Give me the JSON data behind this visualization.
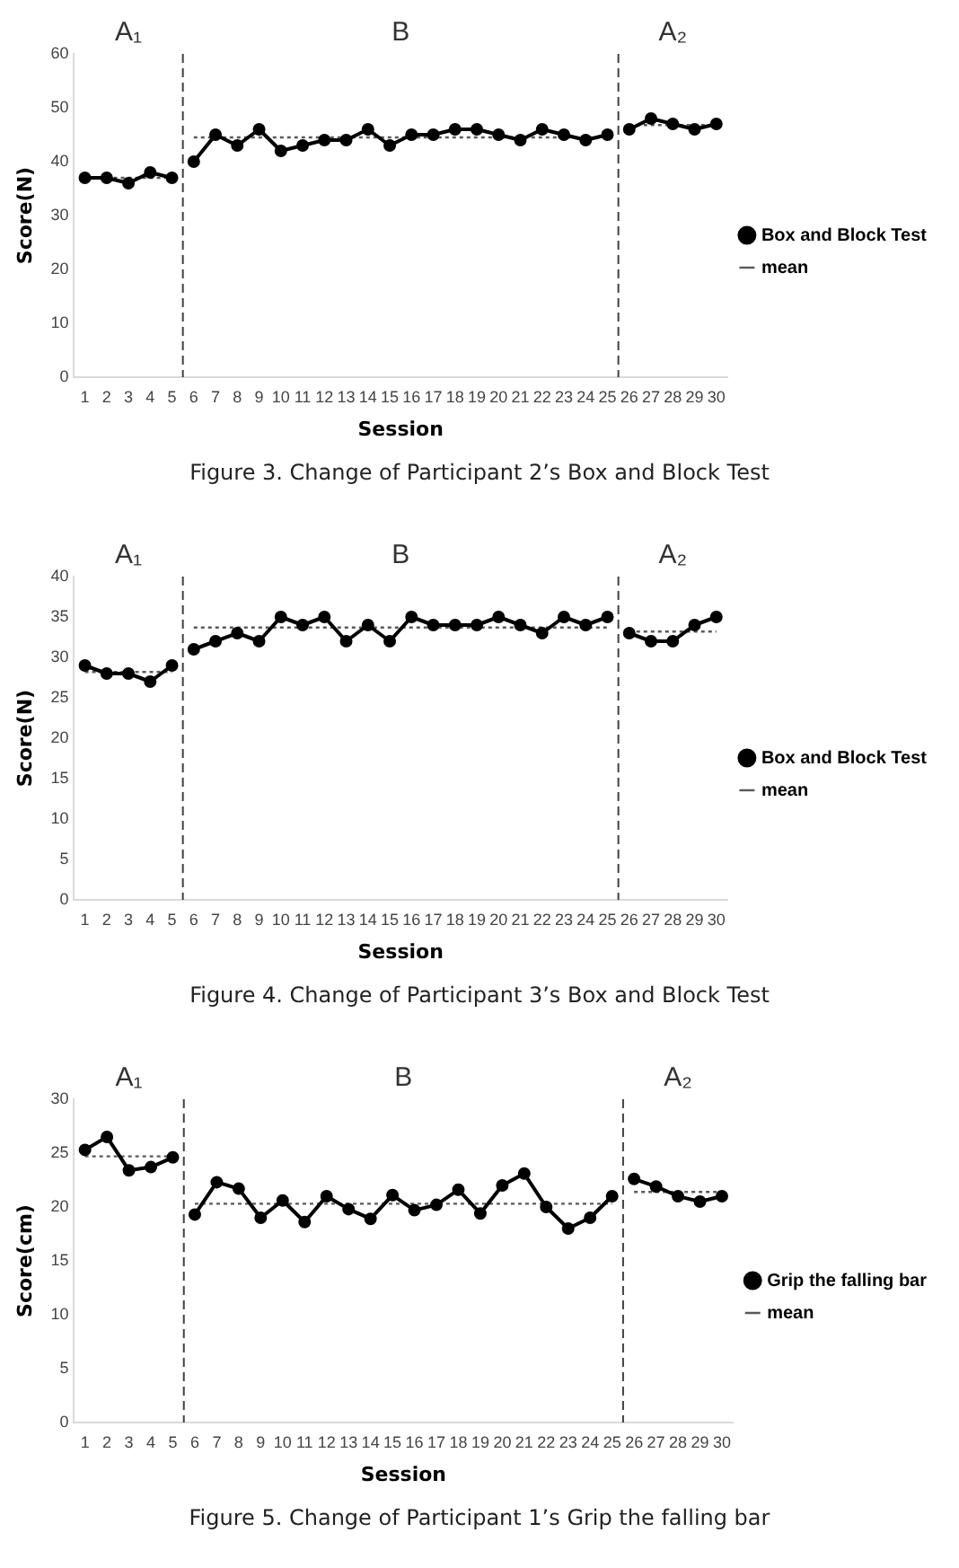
{
  "chart_data": [
    {
      "type": "line",
      "title": "Figure 3. Change of Participant 2’s Box and Block Test",
      "xlabel": "Session",
      "ylabel": "Score(N)",
      "xlim": [
        0.5,
        30.5
      ],
      "xticks": [
        1,
        2,
        3,
        4,
        5,
        6,
        7,
        8,
        9,
        10,
        11,
        12,
        13,
        14,
        15,
        16,
        17,
        18,
        19,
        20,
        21,
        22,
        23,
        24,
        25,
        26,
        27,
        28,
        29,
        30
      ],
      "ylim": [
        0,
        60
      ],
      "yticks": [
        0,
        10,
        20,
        30,
        40,
        50,
        60
      ],
      "grid": false,
      "legend": "right",
      "marker": "circle",
      "line_style": "solid",
      "series": [
        {
          "name": "Box and Block Test",
          "color": "#000000",
          "x": [
            1,
            2,
            3,
            4,
            5
          ],
          "values": [
            37,
            37,
            36,
            38,
            37
          ]
        },
        {
          "color": "#000000",
          "x": [
            6,
            7,
            8,
            9,
            10,
            11,
            12,
            13,
            14,
            15,
            16,
            17,
            18,
            19,
            20,
            21,
            22,
            23,
            24,
            25
          ],
          "values": [
            40,
            45,
            43,
            46,
            42,
            43,
            44,
            44,
            46,
            43,
            45,
            45,
            46,
            46,
            45,
            44,
            46,
            45,
            44,
            45
          ]
        },
        {
          "color": "#000000",
          "x": [
            26,
            27,
            28,
            29,
            30
          ],
          "values": [
            46,
            48,
            47,
            46,
            47
          ]
        },
        {
          "name": "mean",
          "color": "#595959",
          "marker": "none",
          "line_style": "dotted",
          "x": [
            1,
            5
          ],
          "values": [
            37,
            37
          ]
        },
        {
          "color": "#595959",
          "marker": "none",
          "line_style": "dotted",
          "x": [
            6,
            25
          ],
          "values": [
            44.5,
            44.5
          ]
        },
        {
          "color": "#595959",
          "marker": "none",
          "line_style": "dotted",
          "x": [
            26,
            30
          ],
          "values": [
            46.8,
            46.8
          ]
        }
      ],
      "ref_lines": [
        {
          "axis": "x",
          "value": 5.5,
          "line_style": "dashed",
          "color": "#404040"
        },
        {
          "axis": "x",
          "value": 25.5,
          "line_style": "dashed",
          "color": "#404040"
        }
      ],
      "annotations": [
        "A₁",
        "B",
        "A₂"
      ]
    },
    {
      "type": "line",
      "title": "Figure 4. Change of Participant 3’s Box and Block Test",
      "xlabel": "Session",
      "ylabel": "Score(N)",
      "xlim": [
        0.5,
        30.5
      ],
      "xticks": [
        1,
        2,
        3,
        4,
        5,
        6,
        7,
        8,
        9,
        10,
        11,
        12,
        13,
        14,
        15,
        16,
        17,
        18,
        19,
        20,
        21,
        22,
        23,
        24,
        25,
        26,
        27,
        28,
        29,
        30
      ],
      "ylim": [
        0,
        40
      ],
      "yticks": [
        0,
        5,
        10,
        15,
        20,
        25,
        30,
        35,
        40
      ],
      "grid": false,
      "legend": "right",
      "marker": "circle",
      "line_style": "solid",
      "series": [
        {
          "name": "Box and Block Test",
          "color": "#000000",
          "x": [
            1,
            2,
            3,
            4,
            5
          ],
          "values": [
            29,
            28,
            28,
            27,
            29
          ]
        },
        {
          "color": "#000000",
          "x": [
            6,
            7,
            8,
            9,
            10,
            11,
            12,
            13,
            14,
            15,
            16,
            17,
            18,
            19,
            20,
            21,
            22,
            23,
            24,
            25
          ],
          "values": [
            31,
            32,
            33,
            32,
            35,
            34,
            35,
            32,
            34,
            32,
            35,
            34,
            34,
            34,
            35,
            34,
            33,
            35,
            34,
            35
          ]
        },
        {
          "color": "#000000",
          "x": [
            26,
            27,
            28,
            29,
            30
          ],
          "values": [
            33,
            32,
            32,
            34,
            35
          ]
        },
        {
          "name": "mean",
          "color": "#595959",
          "marker": "none",
          "line_style": "dotted",
          "x": [
            1,
            5
          ],
          "values": [
            28.2,
            28.2
          ]
        },
        {
          "color": "#595959",
          "marker": "none",
          "line_style": "dotted",
          "x": [
            6,
            25
          ],
          "values": [
            33.7,
            33.7
          ]
        },
        {
          "color": "#595959",
          "marker": "none",
          "line_style": "dotted",
          "x": [
            26,
            30
          ],
          "values": [
            33.2,
            33.2
          ]
        }
      ],
      "ref_lines": [
        {
          "axis": "x",
          "value": 5.5,
          "line_style": "dashed",
          "color": "#404040"
        },
        {
          "axis": "x",
          "value": 25.5,
          "line_style": "dashed",
          "color": "#404040"
        }
      ],
      "annotations": [
        "A₁",
        "B",
        "A₂"
      ]
    },
    {
      "type": "line",
      "title": "Figure 5. Change of Participant 1’s Grip the falling bar",
      "xlabel": "Session",
      "ylabel": "Score(cm)",
      "xlim": [
        0.5,
        30.5
      ],
      "xticks": [
        1,
        2,
        3,
        4,
        5,
        6,
        7,
        8,
        9,
        10,
        11,
        12,
        13,
        14,
        15,
        16,
        17,
        18,
        19,
        20,
        21,
        22,
        23,
        24,
        25,
        26,
        27,
        28,
        29,
        30
      ],
      "ylim": [
        0,
        30
      ],
      "yticks": [
        0,
        5,
        10,
        15,
        20,
        25,
        30
      ],
      "grid": false,
      "legend": "right",
      "marker": "circle",
      "line_style": "solid",
      "series": [
        {
          "name": "Grip the falling bar",
          "color": "#000000",
          "x": [
            1,
            2,
            3,
            4,
            5
          ],
          "values": [
            25.3,
            26.5,
            23.4,
            23.7,
            24.6
          ]
        },
        {
          "color": "#000000",
          "x": [
            6,
            7,
            8,
            9,
            10,
            11,
            12,
            13,
            14,
            15,
            16,
            17,
            18,
            19,
            20,
            21,
            22,
            23,
            24,
            25
          ],
          "values": [
            19.3,
            22.3,
            21.7,
            19,
            20.6,
            18.6,
            21,
            19.8,
            18.9,
            21.1,
            19.7,
            20.2,
            21.6,
            19.4,
            22,
            23.1,
            20,
            18,
            19,
            21
          ]
        },
        {
          "color": "#000000",
          "x": [
            26,
            27,
            28,
            29,
            30
          ],
          "values": [
            22.6,
            21.9,
            21,
            20.5,
            21
          ]
        },
        {
          "name": "mean",
          "color": "#595959",
          "marker": "none",
          "line_style": "dotted",
          "x": [
            1,
            5
          ],
          "values": [
            24.7,
            24.7
          ]
        },
        {
          "color": "#595959",
          "marker": "none",
          "line_style": "dotted",
          "x": [
            6,
            25
          ],
          "values": [
            20.3,
            20.3
          ]
        },
        {
          "color": "#595959",
          "marker": "none",
          "line_style": "dotted",
          "x": [
            26,
            30
          ],
          "values": [
            21.4,
            21.4
          ]
        }
      ],
      "ref_lines": [
        {
          "axis": "x",
          "value": 5.5,
          "line_style": "dashed",
          "color": "#404040"
        },
        {
          "axis": "x",
          "value": 25.5,
          "line_style": "dashed",
          "color": "#404040"
        }
      ],
      "annotations": [
        "A₁",
        "B",
        "A₂"
      ]
    }
  ]
}
